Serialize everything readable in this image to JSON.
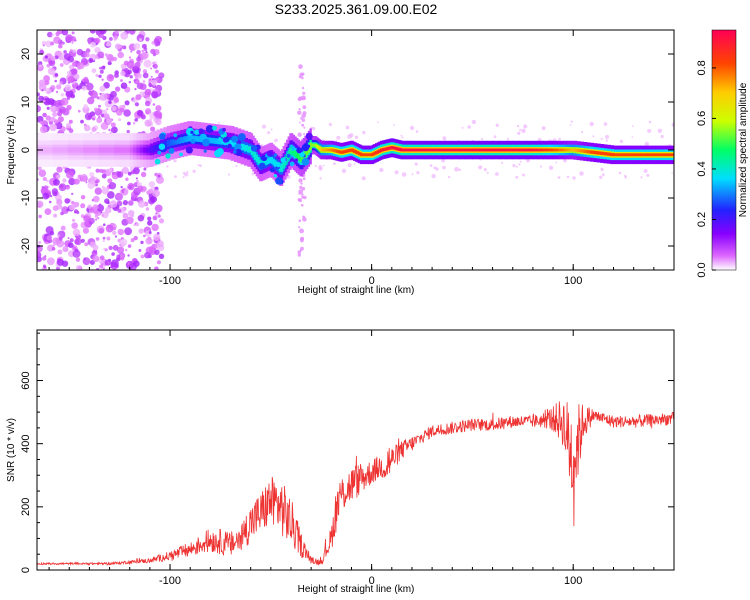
{
  "figure_title": "S233.2025.361.09.00.E02",
  "chart_data": [
    {
      "type": "heatmap",
      "title": "S233.2025.361.09.00.E02",
      "xlabel": "Height of straight line (km)",
      "ylabel": "Frequency (Hz)",
      "xlim": [
        -166,
        150
      ],
      "ylim": [
        -25,
        25
      ],
      "xticks": [
        -100,
        0,
        100
      ],
      "yticks": [
        -20,
        -10,
        0,
        10,
        20
      ],
      "colorbar": {
        "label": "Normalized spectral amplitude",
        "ticks": [
          0.0,
          0.2,
          0.4,
          0.6,
          0.8
        ],
        "range": [
          0,
          0.95
        ],
        "colors": [
          "#ffffff",
          "#dd66ff",
          "#8800ff",
          "#2222ff",
          "#00ddff",
          "#00ff66",
          "#ccff00",
          "#ffcc00",
          "#ff4400",
          "#ff0055"
        ]
      },
      "trace": {
        "x": [
          -166,
          -120,
          -110,
          -100,
          -90,
          -80,
          -70,
          -60,
          -55,
          -50,
          -45,
          -40,
          -35,
          -30,
          -28,
          -25,
          -20,
          -15,
          -10,
          -5,
          0,
          5,
          10,
          15,
          20,
          40,
          60,
          80,
          95,
          100,
          110,
          120,
          130,
          150
        ],
        "frequency": [
          0,
          0,
          0,
          1.5,
          2.5,
          2,
          1.5,
          0,
          -3,
          -2,
          -4,
          0,
          -2,
          1,
          1,
          0,
          0,
          -0.5,
          0,
          -1,
          -1,
          0,
          0.5,
          0,
          0,
          0,
          0,
          0,
          0,
          0,
          -0.5,
          -1,
          -1,
          -1
        ],
        "amplitude": [
          0.05,
          0.1,
          0.25,
          0.35,
          0.4,
          0.4,
          0.42,
          0.45,
          0.45,
          0.42,
          0.45,
          0.5,
          0.55,
          0.6,
          0.6,
          0.75,
          0.8,
          0.85,
          0.85,
          0.85,
          0.85,
          0.9,
          0.92,
          0.93,
          0.93,
          0.92,
          0.93,
          0.92,
          0.8,
          0.75,
          0.85,
          0.85,
          0.85,
          0.85
        ]
      }
    },
    {
      "type": "line",
      "xlabel": "Height of straight line (km)",
      "ylabel": "SNR (10 * v/v)",
      "xlim": [
        -166,
        150
      ],
      "ylim": [
        0,
        760
      ],
      "xticks": [
        -100,
        0,
        100
      ],
      "yticks": [
        0,
        200,
        400,
        600
      ],
      "series": [
        {
          "name": "SNR",
          "color": "#ee3333",
          "x": [
            -166,
            -150,
            -130,
            -120,
            -110,
            -100,
            -95,
            -90,
            -85,
            -80,
            -75,
            -70,
            -65,
            -60,
            -55,
            -50,
            -45,
            -40,
            -35,
            -30,
            -25,
            -20,
            -18,
            -15,
            -10,
            -5,
            0,
            5,
            8,
            10,
            15,
            20,
            25,
            30,
            40,
            50,
            60,
            70,
            80,
            85,
            90,
            95,
            100,
            105,
            110,
            120,
            130,
            140,
            150
          ],
          "y": [
            20,
            20,
            20,
            25,
            30,
            45,
            55,
            65,
            80,
            95,
            90,
            80,
            100,
            150,
            180,
            220,
            200,
            150,
            80,
            30,
            25,
            100,
            180,
            240,
            270,
            290,
            310,
            330,
            340,
            350,
            380,
            400,
            420,
            440,
            450,
            460,
            460,
            470,
            470,
            475,
            480,
            470,
            350,
            470,
            490,
            470,
            470,
            475,
            480
          ],
          "noise": [
            3,
            3,
            4,
            5,
            8,
            15,
            20,
            25,
            30,
            40,
            40,
            40,
            50,
            60,
            70,
            80,
            90,
            80,
            40,
            10,
            10,
            40,
            70,
            60,
            60,
            50,
            40,
            40,
            80,
            40,
            30,
            25,
            20,
            20,
            20,
            20,
            20,
            20,
            20,
            25,
            40,
            80,
            180,
            60,
            20,
            20,
            20,
            20,
            20
          ]
        }
      ]
    }
  ]
}
